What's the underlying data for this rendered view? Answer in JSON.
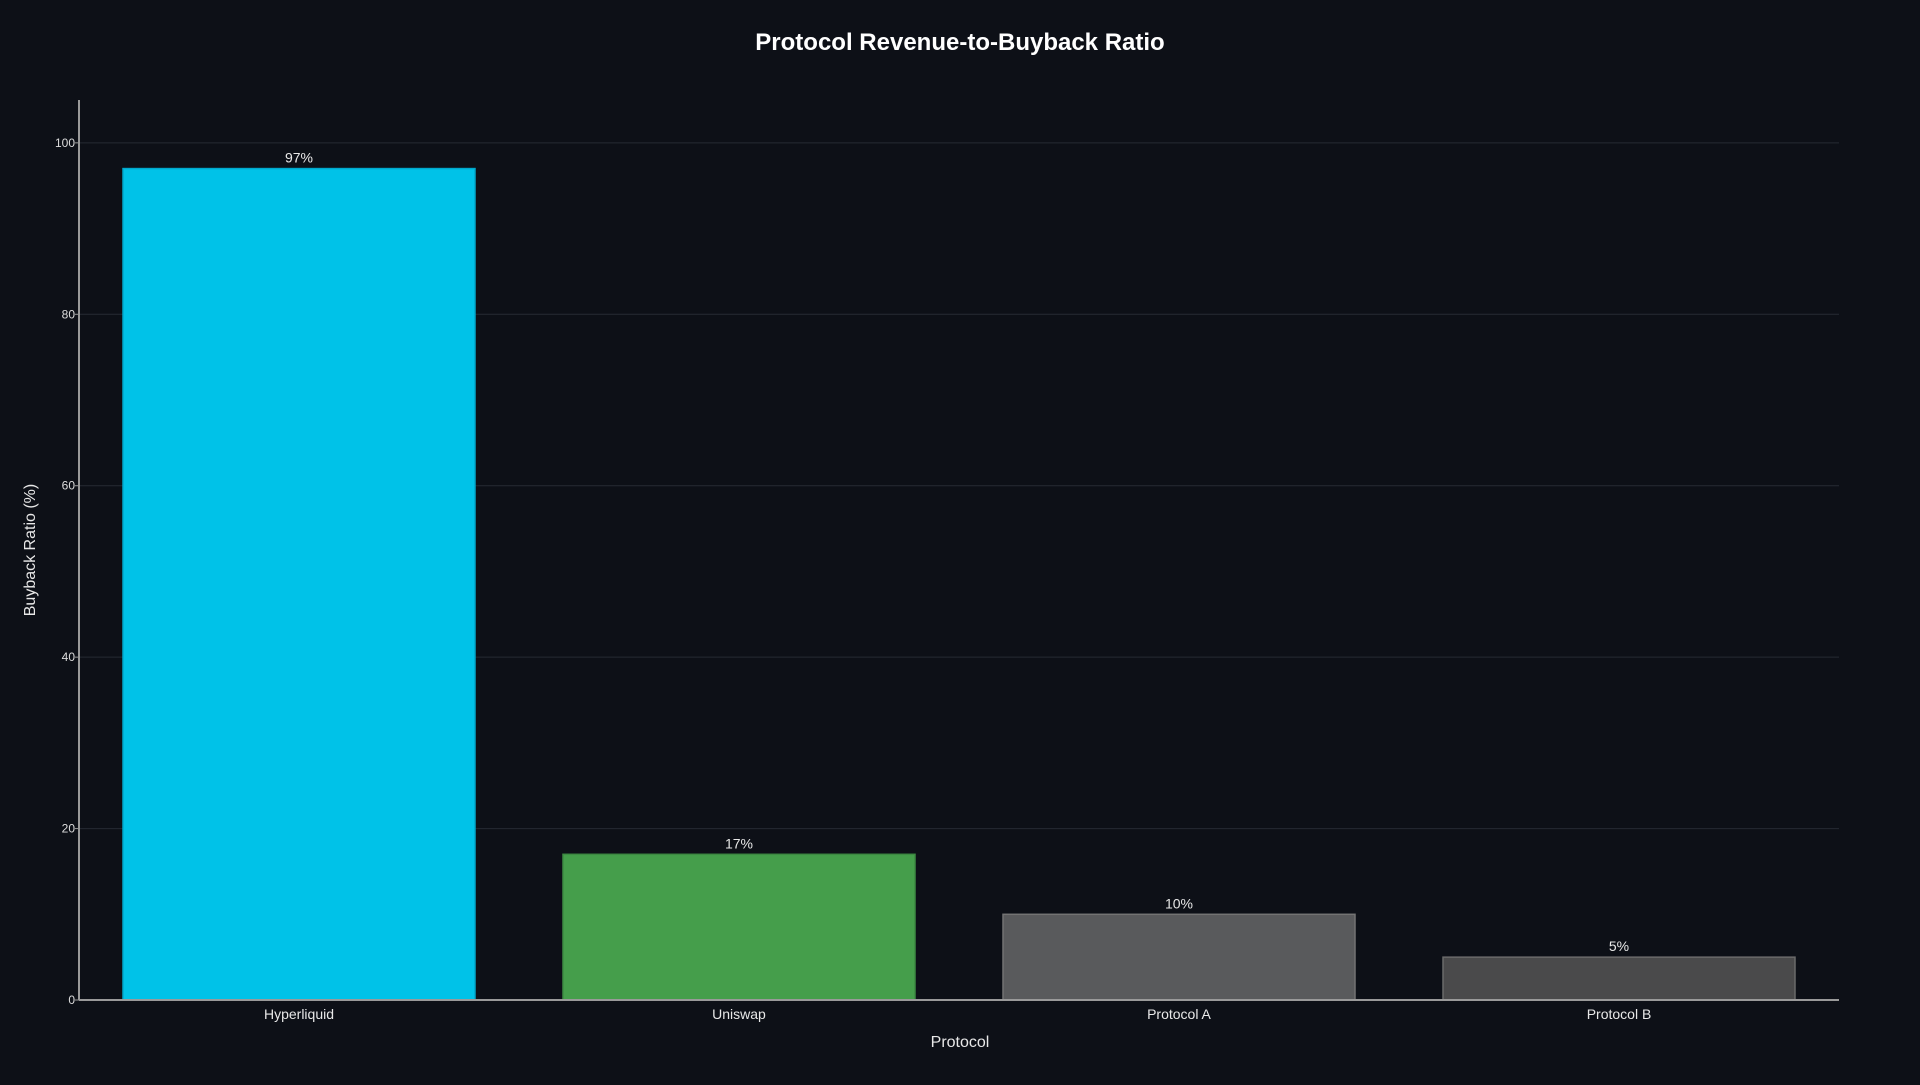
{
  "chart_data": {
    "type": "bar",
    "title": "Protocol Revenue-to-Buyback Ratio",
    "xlabel": "Protocol",
    "ylabel": "Buyback Ratio (%)",
    "categories": [
      "Hyperliquid",
      "Uniswap",
      "Protocol A",
      "Protocol B"
    ],
    "values": [
      97,
      17,
      10,
      5
    ],
    "data_labels": [
      "97%",
      "17%",
      "10%",
      "5%"
    ],
    "bar_colors": [
      "#00c2e8",
      "#459e4b",
      "#595a5c",
      "#4a4a4b"
    ],
    "bar_edge_colors": [
      "#00a8cc",
      "#3d8a42",
      "#737373",
      "#6a6a6a"
    ],
    "ylim": [
      0,
      105
    ],
    "yticks": [
      0,
      20,
      40,
      60,
      80,
      100
    ],
    "ytick_labels": [
      "0",
      "20",
      "40",
      "60",
      "80",
      "100"
    ],
    "grid": true,
    "legend": "none",
    "background_color": "#0d1017"
  }
}
